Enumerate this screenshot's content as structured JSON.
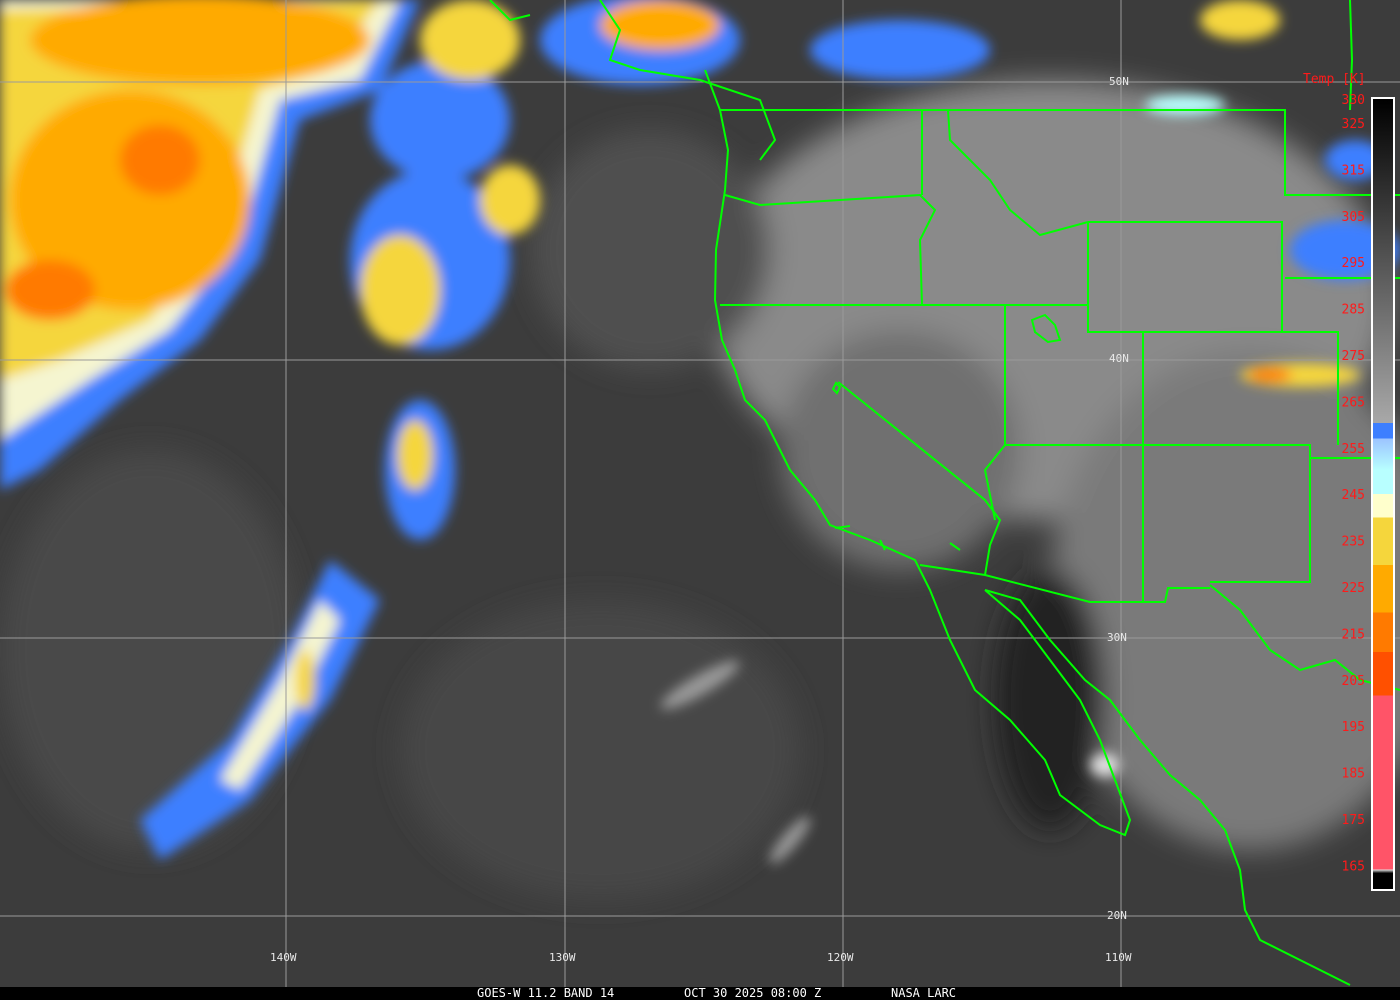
{
  "map": {
    "type": "satellite infrared image",
    "grid_labels": {
      "latitude": [
        "50N",
        "40N",
        "30N",
        "20N"
      ],
      "longitude": [
        "140W",
        "130W",
        "120W",
        "110W"
      ]
    },
    "colors": {
      "borders": "#00ff00",
      "grid": "#9a9a9a",
      "labels": "#ff1a1a"
    }
  },
  "legend": {
    "title": "Temp [K]",
    "ticks": [
      "330",
      "325",
      "315",
      "305",
      "295",
      "285",
      "275",
      "265",
      "255",
      "245",
      "235",
      "225",
      "215",
      "205",
      "195",
      "185",
      "175",
      "165"
    ]
  },
  "footer": {
    "product": "GOES-W 11.2 BAND 14",
    "datetime": "OCT 30 2025 08:00 Z",
    "source": "NASA LARC"
  }
}
